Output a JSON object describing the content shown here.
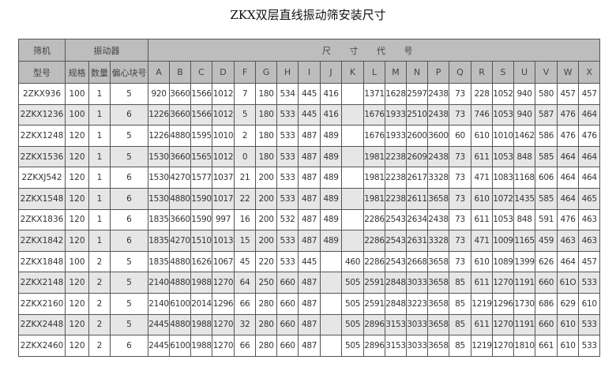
{
  "title": "ZKX双层直线振动筛安装尺寸",
  "header": {
    "model_top": "筛机",
    "model_bottom": "型号",
    "vibrator": "振动器",
    "dimensions": "尺 寸 代 号",
    "vibrator_cols": [
      "规格",
      "数量",
      "偏心块号"
    ],
    "dim_cols": [
      "A",
      "B",
      "C",
      "D",
      "F",
      "G",
      "H",
      "I",
      "J",
      "K",
      "L",
      "M",
      "N",
      "P",
      "Q",
      "R",
      "S",
      "U",
      "V",
      "W",
      "X"
    ]
  },
  "rows": [
    [
      "2ZKX936",
      "100",
      "1",
      "5",
      "920",
      "3660",
      "1566",
      "1012",
      "7",
      "180",
      "534",
      "445",
      "416",
      "",
      "1371",
      "1628",
      "2597",
      "2438",
      "73",
      "228",
      "1052",
      "940",
      "580",
      "457",
      "457"
    ],
    [
      "2ZKX1236",
      "100",
      "1",
      "6",
      "1226",
      "3660",
      "1566",
      "1012",
      "5",
      "180",
      "533",
      "445",
      "416",
      "",
      "1676",
      "1933",
      "2510",
      "2438",
      "73",
      "746",
      "1053",
      "940",
      "587",
      "476",
      "464"
    ],
    [
      "2ZKX1248",
      "120",
      "1",
      "5",
      "1226",
      "4880",
      "1595",
      "1010",
      "2",
      "180",
      "533",
      "487",
      "489",
      "",
      "1676",
      "1933",
      "2600",
      "3600",
      "60",
      "610",
      "1010",
      "1462",
      "586",
      "476",
      "476"
    ],
    [
      "2ZKX1536",
      "120",
      "1",
      "5",
      "1530",
      "3660",
      "1565",
      "1012",
      "0",
      "180",
      "533",
      "487",
      "489",
      "",
      "1981",
      "2238",
      "2609",
      "2438",
      "73",
      "611",
      "1053",
      "848",
      "585",
      "464",
      "464"
    ],
    [
      "2ZKXJ542",
      "120",
      "1",
      "6",
      "1530",
      "4270",
      "1577",
      "1037",
      "21",
      "200",
      "533",
      "487",
      "489",
      "",
      "1981",
      "2238",
      "2617",
      "3328",
      "73",
      "471",
      "1083",
      "1168",
      "606",
      "464",
      "464"
    ],
    [
      "2ZKX1548",
      "120",
      "1",
      "6",
      "1530",
      "4880",
      "1590",
      "1017",
      "22",
      "200",
      "533",
      "487",
      "489",
      "",
      "1981",
      "2238",
      "2611",
      "3658",
      "73",
      "610",
      "1072",
      "1435",
      "585",
      "464",
      "465"
    ],
    [
      "2ZKX1836",
      "120",
      "1",
      "6",
      "1835",
      "3660",
      "1590",
      "997",
      "16",
      "200",
      "532",
      "487",
      "489",
      "",
      "2286",
      "2543",
      "2634",
      "2438",
      "73",
      "611",
      "1053",
      "848",
      "591",
      "476",
      "463"
    ],
    [
      "2ZKX1842",
      "120",
      "1",
      "6",
      "1835",
      "4270",
      "1510",
      "1013",
      "15",
      "200",
      "533",
      "487",
      "489",
      "",
      "2286",
      "2543",
      "2631",
      "3328",
      "73",
      "471",
      "1009",
      "1165",
      "459",
      "463",
      "463"
    ],
    [
      "2ZKX1848",
      "100",
      "2",
      "5",
      "1835",
      "4880",
      "1626",
      "1067",
      "45",
      "220",
      "533",
      "445",
      "",
      "460",
      "2286",
      "2543",
      "2668",
      "3658",
      "73",
      "610",
      "1089",
      "1399",
      "626",
      "464",
      "457"
    ],
    [
      "2ZKX2148",
      "120",
      "2",
      "5",
      "2140",
      "4880",
      "1988",
      "1270",
      "64",
      "250",
      "660",
      "487",
      "",
      "505",
      "2591",
      "2848",
      "3033",
      "3658",
      "85",
      "611",
      "1270",
      "1191",
      "660",
      "61O",
      "533"
    ],
    [
      "2ZKX2160",
      "120",
      "2",
      "5",
      "2140",
      "6100",
      "2014",
      "1296",
      "66",
      "280",
      "660",
      "487",
      "",
      "505",
      "2591",
      "2848",
      "3223",
      "3658",
      "85",
      "1219",
      "1296",
      "1730",
      "686",
      "629",
      "610"
    ],
    [
      "2ZKX2448",
      "120",
      "2",
      "5",
      "2445",
      "4880",
      "1988",
      "1270",
      "32",
      "280",
      "660",
      "487",
      "",
      "505",
      "2896",
      "3153",
      "3033",
      "3658",
      "85",
      "611",
      "1270",
      "1191",
      "660",
      "610",
      "533"
    ],
    [
      "2ZKX2460",
      "120",
      "2",
      "6",
      "2445",
      "6100",
      "1988",
      "1270",
      "66",
      "280",
      "660",
      "487",
      "",
      "505",
      "2896",
      "3153",
      "3033",
      "3658",
      "85",
      "1219",
      "1270",
      "1810",
      "661",
      "610",
      "533"
    ]
  ]
}
